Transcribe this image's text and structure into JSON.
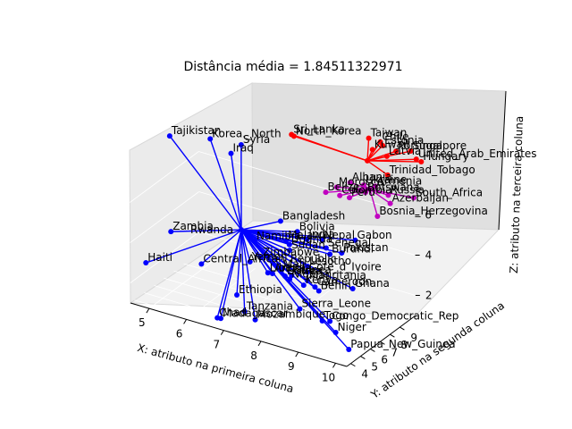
{
  "chart_data": {
    "type": "scatter-3d",
    "title": "Distância média = 1.84511322971",
    "xlabel": "X: atributo na primeira coluna",
    "ylabel": "Y: atributo na segunda coluna",
    "zlabel": "Z: atributo na terceira coluna",
    "xlim": [
      4.5,
      10.3
    ],
    "ylim": [
      3.6,
      10.6
    ],
    "zlim": [
      1.0,
      8.6
    ],
    "x_ticks": [
      5,
      6,
      7,
      8,
      9,
      10
    ],
    "y_ticks": [
      4,
      5,
      6,
      7,
      8,
      9
    ],
    "z_ticks": [
      2,
      4,
      6
    ],
    "grid": true,
    "clusters": [
      {
        "color": "#0000ff",
        "center": {
          "label": "Rwanda",
          "x": 6.8,
          "y": 6.2,
          "z": 4.95
        },
        "points": [
          {
            "label": "Korea._North",
            "x": 5.84,
            "y": 6.72,
            "z": 8.76
          },
          {
            "label": "Syria",
            "x": 6.62,
            "y": 6.91,
            "z": 8.82
          },
          {
            "label": "Tajikistan",
            "x": 4.77,
            "y": 6.65,
            "z": 8.35
          },
          {
            "label": "Iraq",
            "x": 6.37,
            "y": 6.82,
            "z": 8.29
          },
          {
            "label": "Zambia",
            "x": 5.51,
            "y": 3.93,
            "z": 4.98
          },
          {
            "label": "Namibia",
            "x": 7.17,
            "y": 6.15,
            "z": 4.59
          },
          {
            "label": "Haiti",
            "x": 4.87,
            "y": 3.79,
            "z": 3.13
          },
          {
            "label": "Central_African_Republic",
            "x": 6.16,
            "y": 4.55,
            "z": 3.5
          },
          {
            "label": "Yemen",
            "x": 7.25,
            "y": 5.36,
            "z": 3.91
          },
          {
            "label": "Zimbabwe",
            "x": 7.47,
            "y": 5.65,
            "z": 4.15
          },
          {
            "label": "Ethiopia",
            "x": 7.12,
            "y": 4.5,
            "z": 2.5
          },
          {
            "label": "Tanzania",
            "x": 7.4,
            "y": 4.22,
            "z": 1.93
          },
          {
            "label": "Mozambique",
            "x": 7.67,
            "y": 4.27,
            "z": 1.65
          },
          {
            "label": "Sierra_Leone",
            "x": 8.52,
            "y": 5.59,
            "z": 2.17
          },
          {
            "label": "Chad",
            "x": 6.79,
            "y": 3.75,
            "z": 1.45
          },
          {
            "label": "Madagascar",
            "x": 6.87,
            "y": 3.8,
            "z": 1.45
          },
          {
            "label": "Togo",
            "x": 9.06,
            "y": 5.82,
            "z": 1.79
          },
          {
            "label": "Congo_Democratic_Rep",
            "x": 9.22,
            "y": 5.99,
            "z": 1.79
          },
          {
            "label": "Niger",
            "x": 9.38,
            "y": 5.97,
            "z": 1.33
          },
          {
            "label": "Papua_New_Guinea",
            "x": 9.71,
            "y": 6.04,
            "z": 0.64
          },
          {
            "label": "Bangladesh",
            "x": 7.6,
            "y": 7.16,
            "z": 5.47
          },
          {
            "label": "Bolivia",
            "x": 8.01,
            "y": 7.31,
            "z": 5.11
          },
          {
            "label": "India",
            "x": 8.24,
            "y": 7.4,
            "z": 4.82
          },
          {
            "label": "Nepal",
            "x": 8.58,
            "y": 7.66,
            "z": 4.87
          },
          {
            "label": "Senegal",
            "x": 8.69,
            "y": 7.65,
            "z": 4.55
          },
          {
            "label": "Gabon",
            "x": 9.3,
            "y": 8.3,
            "z": 5.03
          },
          {
            "label": "Burundi",
            "x": 8.79,
            "y": 7.65,
            "z": 4.29
          },
          {
            "label": "Pakistan",
            "x": 9.03,
            "y": 7.94,
            "z": 4.38
          },
          {
            "label": "Malawi",
            "x": 7.82,
            "y": 6.88,
            "z": 4.72
          },
          {
            "label": "Uganda",
            "x": 7.9,
            "y": 6.91,
            "z": 4.56
          },
          {
            "label": "Sudan",
            "x": 7.93,
            "y": 6.82,
            "z": 4.32
          },
          {
            "label": "Lesotho",
            "x": 8.37,
            "y": 6.95,
            "z": 3.72
          },
          {
            "label": "Mali",
            "x": 7.84,
            "y": 6.33,
            "z": 3.49
          },
          {
            "label": "Cote_d_Ivoire",
            "x": 8.38,
            "y": 6.9,
            "z": 3.45
          },
          {
            "label": "Guinea",
            "x": 8.07,
            "y": 6.48,
            "z": 3.27
          },
          {
            "label": "Mauritania",
            "x": 8.42,
            "y": 6.75,
            "z": 3.11
          },
          {
            "label": "Kenya",
            "x": 8.37,
            "y": 6.56,
            "z": 2.92
          },
          {
            "label": "Cameroon",
            "x": 8.61,
            "y": 6.8,
            "z": 2.87
          },
          {
            "label": "Benin",
            "x": 8.71,
            "y": 6.81,
            "z": 2.73
          },
          {
            "label": "Ghana",
            "x": 9.42,
            "y": 7.57,
            "z": 2.95
          },
          {
            "label": "Liberia",
            "x": 7.61,
            "y": 5.81,
            "z": 3.39
          },
          {
            "label": "Nigeria",
            "x": 8.09,
            "y": 6.2,
            "z": 3.19
          },
          {
            "label": "Angola",
            "x": 7.73,
            "y": 5.82,
            "z": 3.42
          },
          {
            "label": "Eritrea",
            "x": 8.01,
            "y": 6.04,
            "z": 3.36
          }
        ]
      },
      {
        "color": "#ff0000",
        "center": {
          "label": "",
          "x": 9.18,
          "y": 10.03,
          "z": 8.29
        },
        "points": [
          {
            "label": "Sri_Lanka",
            "x": 7.46,
            "y": 8.85,
            "z": 9.09
          },
          {
            "label": "Taiwan",
            "x": 9.08,
            "y": 10.56,
            "z": 9.17
          },
          {
            "label": "North_Korea",
            "x": 7.52,
            "y": 8.87,
            "z": 9.03
          },
          {
            "label": "United_Arab_Emirates",
            "x": 10.2,
            "y": 11.14,
            "z": 8.52
          },
          {
            "label": "Trinidad_Tobago",
            "x": 9.63,
            "y": 10.38,
            "z": 7.7
          },
          {
            "label": "Latvia",
            "x": 9.58,
            "y": 10.5,
            "z": 8.56
          },
          {
            "label": "Kuwait",
            "x": 9.25,
            "y": 10.29,
            "z": 8.79
          },
          {
            "label": "Portugal",
            "x": 9.76,
            "y": 10.75,
            "z": 8.82
          },
          {
            "label": "Estonia",
            "x": 9.46,
            "y": 10.53,
            "z": 9.02
          },
          {
            "label": "Hungary",
            "x": 10.33,
            "y": 11.15,
            "z": 8.46
          },
          {
            "label": "Singapore",
            "x": 10.07,
            "y": 11.07,
            "z": 8.88
          },
          {
            "label": "Chile",
            "x": 9.4,
            "y": 10.52,
            "z": 9.17
          }
        ]
      },
      {
        "color": "#c000c0",
        "center": {
          "label": "",
          "x": 9.3,
          "y": 9.82,
          "z": 7.01
        },
        "points": [
          {
            "label": "Russia",
            "x": 9.71,
            "y": 10.13,
            "z": 6.83
          },
          {
            "label": "South_Africa",
            "x": 10.23,
            "y": 10.75,
            "z": 6.76
          },
          {
            "label": "Bosnia_Herzegovina",
            "x": 9.53,
            "y": 9.7,
            "z": 5.84
          },
          {
            "label": "Morocco",
            "x": 8.61,
            "y": 9.07,
            "z": 7.02
          },
          {
            "label": "Botswana",
            "x": 9.22,
            "y": 9.67,
            "z": 6.87
          },
          {
            "label": "Belize",
            "x": 8.37,
            "y": 8.85,
            "z": 6.71
          },
          {
            "label": "Colombia",
            "x": 8.68,
            "y": 9.1,
            "z": 6.63
          },
          {
            "label": "Peru",
            "x": 8.89,
            "y": 9.29,
            "z": 6.57
          },
          {
            "label": "Albania",
            "x": 8.87,
            "y": 9.45,
            "z": 7.25
          },
          {
            "label": "Armenia",
            "x": 9.41,
            "y": 9.95,
            "z": 7.18
          },
          {
            "label": "Azerbaijan",
            "x": 9.75,
            "y": 10.17,
            "z": 6.43
          },
          {
            "label": "Ukraine",
            "x": 9.16,
            "y": 9.72,
            "z": 7.18
          }
        ]
      }
    ]
  }
}
